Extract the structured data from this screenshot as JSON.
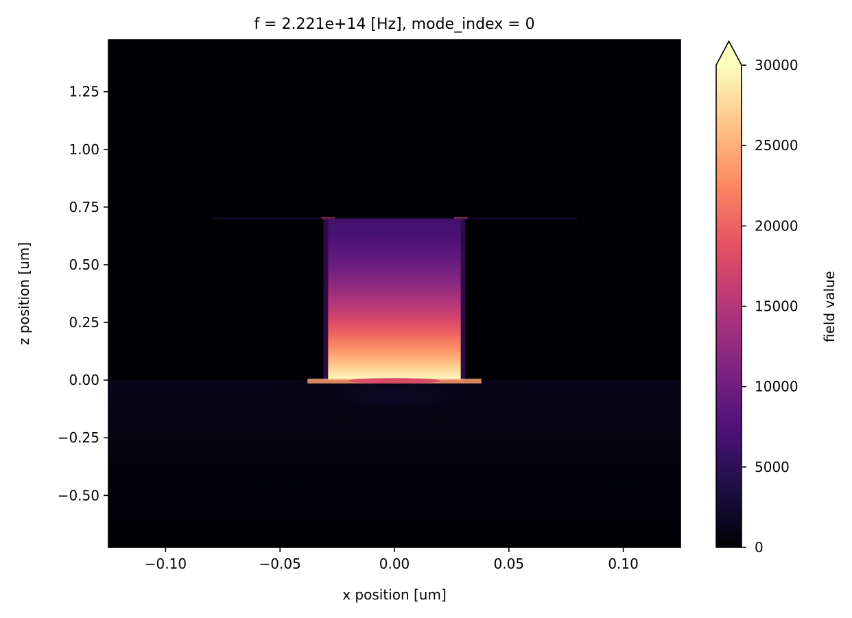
{
  "chart_data": {
    "type": "heatmap",
    "title": "f = 2.221e+14 [Hz], mode_index = 0",
    "xlabel": "x position [um]",
    "ylabel": "z position [um]",
    "colorbar_label": "field value",
    "colormap": "magma",
    "colormap_stops": [
      "#000004",
      "#1c1044",
      "#4f127b",
      "#812581",
      "#b5367a",
      "#e55064",
      "#fb8761",
      "#fec287",
      "#fcfdbf"
    ],
    "colorbar_extend": "max",
    "xlim": [
      -0.125,
      0.125
    ],
    "ylim": [
      -0.725,
      1.475
    ],
    "clim": [
      0,
      30000
    ],
    "xticks": [
      -0.1,
      -0.05,
      0.0,
      0.05,
      0.1
    ],
    "xtick_labels": [
      "−0.10",
      "−0.05",
      "0.00",
      "0.05",
      "0.10"
    ],
    "yticks": [
      -0.5,
      -0.25,
      0.0,
      0.25,
      0.5,
      0.75,
      1.0,
      1.25
    ],
    "ytick_labels": [
      "−0.50",
      "−0.25",
      "0.00",
      "0.25",
      "0.50",
      "0.75",
      "1.00",
      "1.25"
    ],
    "cticks": [
      0,
      5000,
      10000,
      15000,
      20000,
      25000,
      30000
    ],
    "ctick_labels": [
      "0",
      "5000",
      "10000",
      "15000",
      "20000",
      "25000",
      "30000"
    ],
    "field_regions": {
      "core": {
        "x": [
          -0.029,
          0.029
        ],
        "z": [
          0.0,
          0.7
        ],
        "value_at_bottom": 30000,
        "value_at_top": 6500
      },
      "core_edge_gap": {
        "x": [
          0.029,
          0.031
        ],
        "z": [
          0.0,
          0.7
        ],
        "value": 8000
      },
      "substrate": {
        "z": [
          -0.725,
          0.0
        ],
        "peak_value": 2200
      },
      "background": {
        "value": 0
      }
    }
  }
}
